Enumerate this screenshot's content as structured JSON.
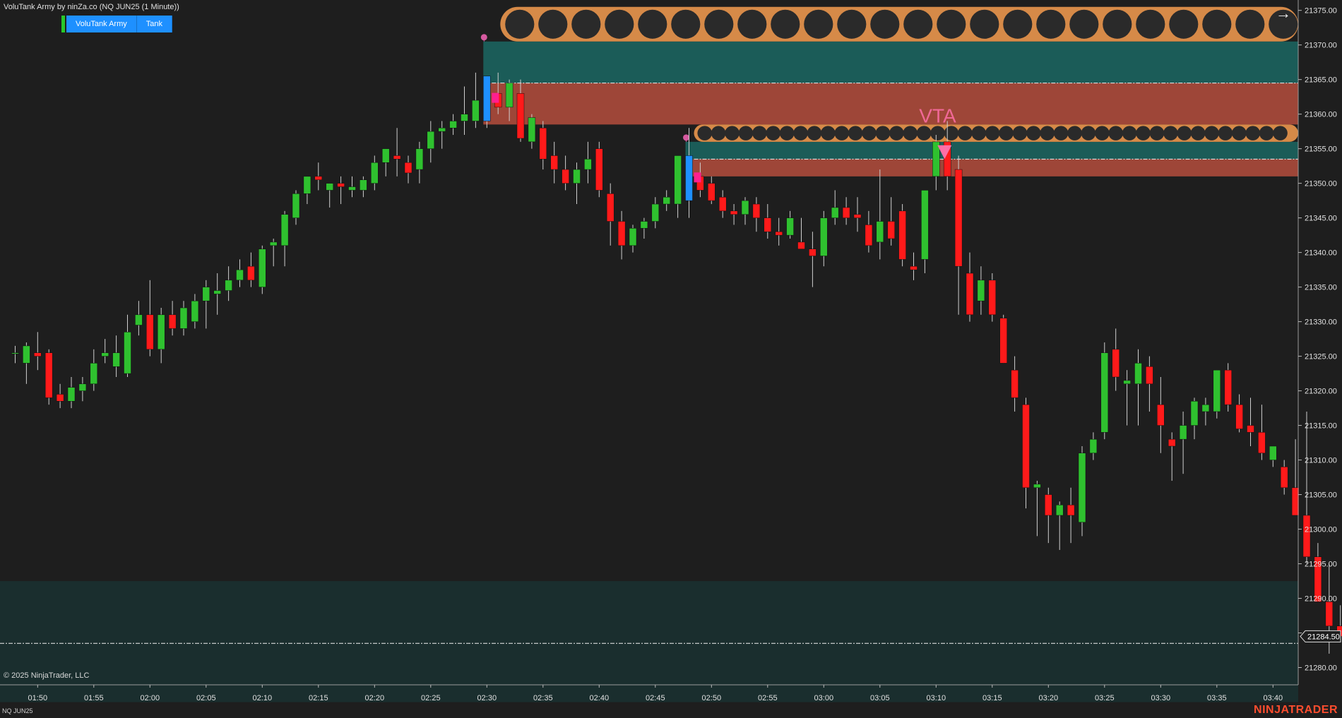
{
  "header": {
    "title": "VoluTank Army by ninZa.co (NQ JUN25 (1 Minute))",
    "buttons": [
      "VoluTank Army",
      "Tank"
    ]
  },
  "footer": {
    "copyright": "© 2025 NinjaTrader, LLC",
    "instrument": "NQ JUN25",
    "brand": "NINJATRADER"
  },
  "colors": {
    "background": "#1e1e1e",
    "up": "#2fc12f",
    "down": "#ff1a1a",
    "zone_supply": "#9e4638",
    "zone_demand": "#1b5c58",
    "tank": "#d68a48",
    "vta": "#ff6fa7",
    "highlight": "#1e90ff",
    "axis_text": "#e0e0e0"
  },
  "chart_data": {
    "type": "candlestick",
    "x_labels": [
      "01:50",
      "01:55",
      "02:00",
      "02:05",
      "02:10",
      "02:15",
      "02:20",
      "02:25",
      "02:30",
      "02:35",
      "02:40",
      "02:45",
      "02:50",
      "02:55",
      "03:00",
      "03:05",
      "03:10",
      "03:15",
      "03:20",
      "03:25",
      "03:30",
      "03:35",
      "03:40"
    ],
    "y_ticks": [
      21280.0,
      21285.0,
      21290.0,
      21295.0,
      21300.0,
      21305.0,
      21310.0,
      21315.0,
      21320.0,
      21325.0,
      21330.0,
      21335.0,
      21340.0,
      21345.0,
      21350.0,
      21355.0,
      21360.0,
      21365.0,
      21370.0,
      21375.0
    ],
    "ylim": [
      21277.5,
      21376.5
    ],
    "last_price": "21284.50",
    "start_time": "01:48",
    "bars": [
      [
        21325.5,
        21326.5,
        21324,
        21325.5
      ],
      [
        21324,
        21327,
        21321,
        21326.5
      ],
      [
        21325.5,
        21328.5,
        21323,
        21325
      ],
      [
        21325.5,
        21326,
        21318,
        21319
      ],
      [
        21319.5,
        21321,
        21317.5,
        21318.5
      ],
      [
        21318.5,
        21322,
        21317.5,
        21320.5
      ],
      [
        21320,
        21322,
        21318.5,
        21321
      ],
      [
        21321,
        21326,
        21320,
        21324
      ],
      [
        21325,
        21327.5,
        21324,
        21325.5
      ],
      [
        21323.5,
        21328,
        21322,
        21325.5
      ],
      [
        21322.5,
        21331,
        21322,
        21328.5
      ],
      [
        21329.5,
        21333,
        21328,
        21331
      ],
      [
        21331,
        21336,
        21325,
        21326
      ],
      [
        21326,
        21332,
        21324,
        21331
      ],
      [
        21331,
        21333,
        21328,
        21329
      ],
      [
        21329,
        21333,
        21328,
        21332
      ],
      [
        21330,
        21334,
        21329,
        21333
      ],
      [
        21333,
        21336,
        21329,
        21335
      ],
      [
        21334,
        21337,
        21331,
        21334.5
      ],
      [
        21334.5,
        21338,
        21333,
        21336
      ],
      [
        21336,
        21339,
        21335,
        21337.5
      ],
      [
        21338,
        21340,
        21335,
        21336
      ],
      [
        21335,
        21341,
        21334,
        21340.5
      ],
      [
        21341,
        21342,
        21338,
        21341.5
      ],
      [
        21341,
        21346,
        21338,
        21345.5
      ],
      [
        21345,
        21349,
        21344,
        21348.5
      ],
      [
        21348.5,
        21351,
        21347,
        21351
      ],
      [
        21351,
        21353,
        21349,
        21350.5
      ],
      [
        21349,
        21350,
        21346.5,
        21350
      ],
      [
        21350,
        21351,
        21347,
        21349.5
      ],
      [
        21349,
        21351,
        21348,
        21349.5
      ],
      [
        21349,
        21351,
        21348,
        21350.5
      ],
      [
        21350,
        21354,
        21349,
        21353
      ],
      [
        21353,
        21355,
        21351,
        21355
      ],
      [
        21354,
        21358,
        21351,
        21353.5
      ],
      [
        21353,
        21354,
        21350,
        21351.5
      ],
      [
        21352,
        21356,
        21350,
        21355
      ],
      [
        21355,
        21359,
        21353,
        21357.5
      ],
      [
        21357.5,
        21359,
        21355,
        21358
      ],
      [
        21358,
        21360,
        21357,
        21359
      ],
      [
        21359,
        21364,
        21357,
        21360
      ],
      [
        21359,
        21366,
        21358,
        21362
      ],
      [
        21359,
        21365,
        21358,
        21365.5
      ],
      [
        21363,
        21366,
        21360,
        21361
      ],
      [
        21361,
        21365,
        21359,
        21364.5
      ],
      [
        21363,
        21365,
        21356,
        21356.5
      ],
      [
        21356,
        21360,
        21355,
        21359.5
      ],
      [
        21358,
        21359,
        21352,
        21353.5
      ],
      [
        21354,
        21356,
        21350,
        21352
      ],
      [
        21352,
        21354,
        21349,
        21350
      ],
      [
        21350,
        21353,
        21347,
        21352
      ],
      [
        21352,
        21356,
        21350,
        21353.5
      ],
      [
        21355,
        21356,
        21348,
        21349
      ],
      [
        21348.5,
        21350,
        21341,
        21344.5
      ],
      [
        21344.5,
        21346,
        21339,
        21341
      ],
      [
        21341,
        21344,
        21340,
        21343.5
      ],
      [
        21343.5,
        21345,
        21342,
        21344.5
      ],
      [
        21344.5,
        21348,
        21343.5,
        21347
      ],
      [
        21347,
        21349,
        21346,
        21348
      ],
      [
        21347,
        21349,
        21345,
        21354
      ],
      [
        21354,
        21358,
        21345,
        21347.5
      ],
      [
        21351,
        21353,
        21348,
        21349
      ],
      [
        21350,
        21351,
        21347,
        21347.5
      ],
      [
        21348,
        21349,
        21345,
        21346
      ],
      [
        21346,
        21347,
        21344,
        21345.5
      ],
      [
        21345.5,
        21348,
        21344,
        21347.5
      ],
      [
        21347,
        21348,
        21343,
        21345
      ],
      [
        21345,
        21347,
        21342,
        21343
      ],
      [
        21343,
        21345,
        21341,
        21342.5
      ],
      [
        21342.5,
        21346,
        21342,
        21345
      ],
      [
        21341.5,
        21345,
        21341,
        21340.5
      ],
      [
        21340.5,
        21343,
        21335,
        21339.5
      ],
      [
        21339.5,
        21346,
        21338,
        21345
      ],
      [
        21345,
        21349,
        21344,
        21346.5
      ],
      [
        21346.5,
        21348,
        21344,
        21345
      ],
      [
        21345.5,
        21348,
        21343,
        21345
      ],
      [
        21344,
        21346,
        21340,
        21341
      ],
      [
        21341.5,
        21352,
        21339,
        21344.5
      ],
      [
        21344.5,
        21348,
        21341,
        21342
      ],
      [
        21346,
        21347,
        21338,
        21339
      ],
      [
        21338,
        21340,
        21336,
        21337.5
      ],
      [
        21339,
        21347,
        21337,
        21349
      ],
      [
        21351,
        21357,
        21349,
        21356
      ],
      [
        21356,
        21359,
        21349,
        21351
      ],
      [
        21352,
        21354,
        21331,
        21338
      ],
      [
        21337,
        21340,
        21330,
        21331
      ],
      [
        21333,
        21338,
        21331,
        21336
      ],
      [
        21336,
        21337,
        21330,
        21331
      ],
      [
        21330.5,
        21331,
        21324,
        21324
      ],
      [
        21323,
        21325,
        21317,
        21319
      ],
      [
        21318,
        21319,
        21303,
        21306
      ],
      [
        21306,
        21307,
        21299,
        21306.5
      ],
      [
        21305,
        21306,
        21298,
        21302
      ],
      [
        21302,
        21304,
        21297,
        21303.5
      ],
      [
        21303.5,
        21306,
        21298,
        21302
      ],
      [
        21301,
        21312,
        21299,
        21311
      ],
      [
        21311,
        21314,
        21310,
        21313
      ],
      [
        21314,
        21327,
        21313,
        21325.5
      ],
      [
        21326,
        21329,
        21320,
        21322
      ],
      [
        21321,
        21323,
        21315,
        21321.5
      ],
      [
        21321,
        21326,
        21315,
        21324
      ],
      [
        21323.5,
        21325,
        21317,
        21321
      ],
      [
        21318,
        21322,
        21311,
        21315
      ],
      [
        21313,
        21314,
        21307,
        21312
      ],
      [
        21313,
        21317,
        21308,
        21315
      ],
      [
        21315,
        21319,
        21313,
        21318.5
      ],
      [
        21317,
        21319,
        21315,
        21318
      ],
      [
        21317,
        21323,
        21316,
        21323
      ],
      [
        21323,
        21324,
        21317,
        21318
      ],
      [
        21318,
        21319.5,
        21314,
        21314.5
      ],
      [
        21315,
        21319,
        21312,
        21314
      ],
      [
        21314,
        21318,
        21310,
        21311
      ],
      [
        21310,
        21312,
        21309,
        21312
      ],
      [
        21309,
        21310,
        21305,
        21306
      ],
      [
        21306,
        21313,
        21302,
        21302
      ],
      [
        21302,
        21317,
        21295,
        21296
      ],
      [
        21296,
        21298,
        21290,
        21289.5
      ],
      [
        21289.5,
        21295,
        21282,
        21286
      ],
      [
        21286,
        21289,
        21284,
        21284.5
      ]
    ],
    "highlight_bars": [
      42,
      60
    ],
    "zones": [
      {
        "start_bar": 42,
        "top": 21370.5,
        "mid": 21364.5,
        "bottom": 21358.5,
        "tank_top": 21375.5,
        "tank_bottom": 21370.5
      },
      {
        "start_bar": 60,
        "top": 21356,
        "mid": 21353.5,
        "bottom": 21351,
        "tank_top": 21358.5,
        "tank_bottom": 21356
      }
    ],
    "support_zone": {
      "top": 21292.5,
      "bottom": 21275,
      "line": 21283.5
    },
    "vta_label": "VTA",
    "vta_bar": 82
  }
}
